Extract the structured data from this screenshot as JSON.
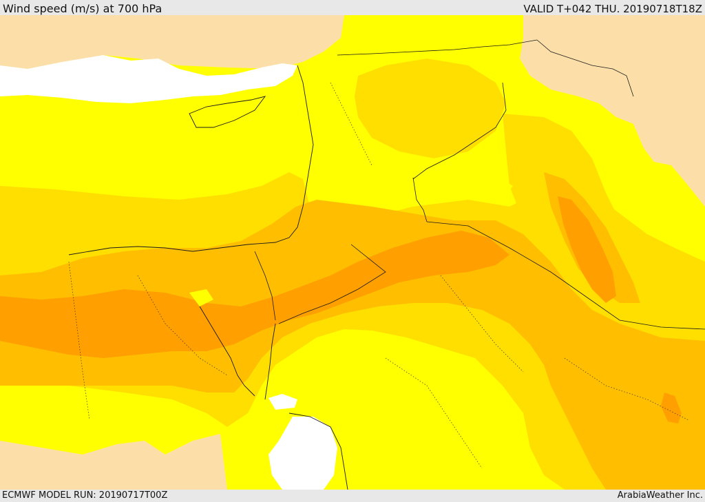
{
  "header": {
    "title": "Wind speed (m/s) at 700 hPa",
    "valid_time": "VALID T+042 THU. 20190718T18Z"
  },
  "footer": {
    "model_run": "ECMWF MODEL RUN: 20190717T00Z",
    "credit": "ArabiaWeather Inc."
  },
  "map": {
    "colors": {
      "sea": "#ffffff",
      "band_calm": "#fcdfa8",
      "band_light": "#ffff00",
      "band_moderate": "#ffdf00",
      "band_fresh": "#ffbf00",
      "band_strong": "#ff9f00",
      "band_very_strong": "#f58a28",
      "coastline": "#1a1a1a"
    }
  }
}
